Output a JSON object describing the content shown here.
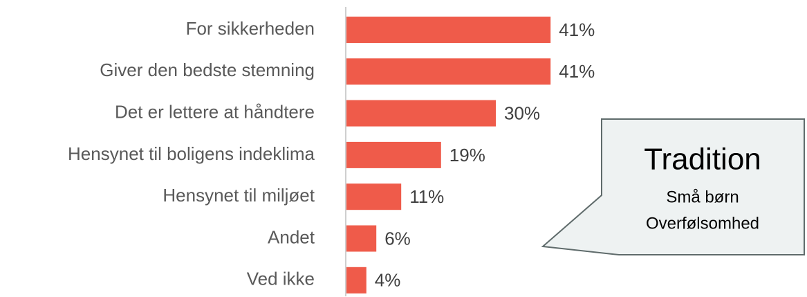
{
  "chart_data": {
    "type": "bar",
    "orientation": "horizontal",
    "categories": [
      "For sikkerheden",
      "Giver den bedste stemning",
      "Det er lettere at håndtere",
      "Hensynet til boligens indeklima",
      "Hensynet til miljøet",
      "Andet",
      "Ved ikke"
    ],
    "values": [
      41,
      41,
      30,
      19,
      11,
      6,
      4
    ],
    "value_labels": [
      "41%",
      "41%",
      "30%",
      "19%",
      "11%",
      "6%",
      "4%"
    ],
    "color": "#ef5b4a",
    "annotations": [
      "Tradition",
      "Små børn",
      "Overfølsomhed"
    ]
  }
}
